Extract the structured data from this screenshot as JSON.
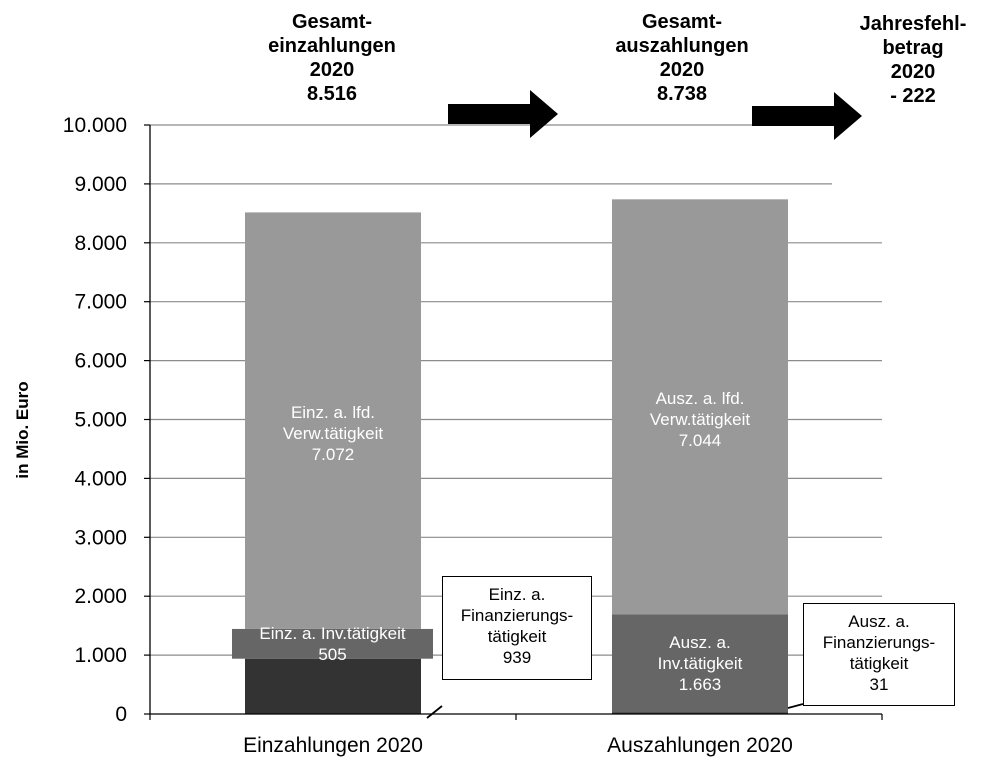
{
  "chart_data": {
    "type": "bar",
    "stacked": true,
    "ylabel": "in Mio. Euro",
    "ylim": [
      0,
      10000
    ],
    "yticks": [
      "0",
      "1.000",
      "2.000",
      "3.000",
      "4.000",
      "5.000",
      "6.000",
      "7.000",
      "8.000",
      "9.000",
      "10.000"
    ],
    "grid": true,
    "categories": [
      "Einzahlungen 2020",
      "Auszahlungen 2020"
    ],
    "bars": [
      {
        "category": "Einzahlungen 2020",
        "segments": [
          {
            "lines": [],
            "value": 939,
            "color": "#333333"
          },
          {
            "lines": [
              "Einz. a. Inv.tätigkeit",
              "505"
            ],
            "value": 505,
            "color": "#666666"
          },
          {
            "lines": [
              "Einz. a. lfd.",
              "Verw.tätigkeit",
              "7.072"
            ],
            "value": 7072,
            "color": "#999999"
          }
        ]
      },
      {
        "category": "Auszahlungen 2020",
        "segments": [
          {
            "lines": [],
            "value": 31,
            "color": "#333333"
          },
          {
            "lines": [
              "Ausz. a.",
              "Inv.tätigkeit",
              "1.663"
            ],
            "value": 1663,
            "color": "#666666"
          },
          {
            "lines": [
              "Ausz. a. lfd.",
              "Verw.tätigkeit",
              "7.044"
            ],
            "value": 7044,
            "color": "#999999"
          }
        ]
      }
    ],
    "callouts": [
      {
        "lines": [
          "Einz. a.",
          "Finanzierungs-",
          "tätigkeit",
          "939"
        ]
      },
      {
        "lines": [
          "Ausz. a.",
          "Finanzierungs-",
          "tätigkeit",
          "31"
        ]
      }
    ],
    "headers": [
      {
        "lines": [
          "Gesamt-",
          "einzahlungen",
          "2020",
          "8.516"
        ]
      },
      {
        "lines": [
          "Gesamt-",
          "auszahlungen",
          "2020",
          "8.738"
        ]
      },
      {
        "lines": [
          "Jahresfehl-",
          "betrag",
          "2020",
          "- 222"
        ]
      }
    ],
    "colors": {
      "arrow": "#000000",
      "grid": "#8c8c8c",
      "axis": "#000000"
    }
  }
}
